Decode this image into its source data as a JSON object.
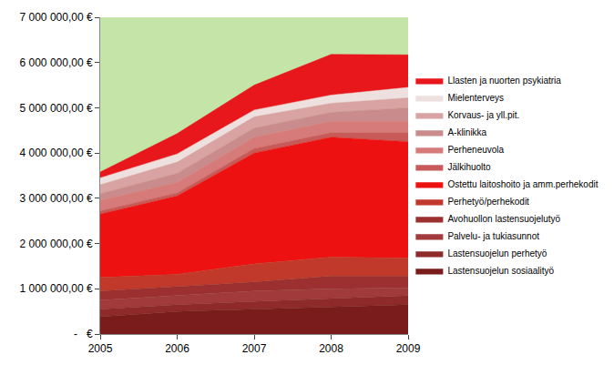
{
  "chart_data": {
    "type": "area",
    "stacked": true,
    "grid": false,
    "legend": "right",
    "x": [
      2005,
      2006,
      2007,
      2008,
      2009
    ],
    "xlim": [
      2005,
      2009
    ],
    "xticks": [
      2005,
      2006,
      2007,
      2008,
      2009
    ],
    "ylim": [
      0,
      7000000
    ],
    "yticks": [
      {
        "value": 0,
        "label": "-   €"
      },
      {
        "value": 1000000,
        "label": "1 000 000,00 €"
      },
      {
        "value": 2000000,
        "label": "2 000 000,00 €"
      },
      {
        "value": 3000000,
        "label": "3 000 000,00 €"
      },
      {
        "value": 4000000,
        "label": "4 000 000,00 €"
      },
      {
        "value": 5000000,
        "label": "5 000 000,00 €"
      },
      {
        "value": 6000000,
        "label": "6 000 000,00 €"
      },
      {
        "value": 7000000,
        "label": "7 000 000,00 €"
      }
    ],
    "series": [
      {
        "name": "Lastensuojelun sosiaalityö",
        "color": "#7a1c1c",
        "values": [
          380000,
          500000,
          550000,
          600000,
          650000
        ]
      },
      {
        "name": "Lastensuojelun perhetyö",
        "color": "#8e2a2a",
        "values": [
          170000,
          150000,
          170000,
          180000,
          200000
        ]
      },
      {
        "name": "Palvelu- ja tukiasunnot",
        "color": "#a13a3a",
        "values": [
          200000,
          200000,
          230000,
          220000,
          170000
        ]
      },
      {
        "name": "Avohuollon lastensuojelutyö",
        "color": "#9c2f2f",
        "values": [
          200000,
          200000,
          200000,
          280000,
          260000
        ]
      },
      {
        "name": "Perhetyö/perhekodit",
        "color": "#c0392b",
        "values": [
          300000,
          270000,
          400000,
          420000,
          400000
        ]
      },
      {
        "name": "Ostettu laitoshoito ja amm.perhekodit",
        "color": "#ee1111",
        "values": [
          1400000,
          1730000,
          2450000,
          2650000,
          2570000
        ]
      },
      {
        "name": "Jälkihuolto",
        "color": "#c85a5a",
        "values": [
          70000,
          70000,
          100000,
          100000,
          200000
        ]
      },
      {
        "name": "Perheneuvola",
        "color": "#d77a7a",
        "values": [
          230000,
          230000,
          250000,
          250000,
          250000
        ]
      },
      {
        "name": "A-klinikka",
        "color": "#c98b8b",
        "values": [
          150000,
          200000,
          200000,
          200000,
          300000
        ]
      },
      {
        "name": "Korvaus- ja yll.pit.",
        "color": "#d9a3a3",
        "values": [
          200000,
          250000,
          250000,
          200000,
          220000
        ]
      },
      {
        "name": "Mielenterveys",
        "color": "#efe0e0",
        "values": [
          150000,
          180000,
          150000,
          180000,
          230000
        ]
      },
      {
        "name": "Llasten ja nuorten psykiatria",
        "color": "#e8171c",
        "values": [
          130000,
          450000,
          550000,
          900000,
          720000
        ]
      }
    ]
  }
}
